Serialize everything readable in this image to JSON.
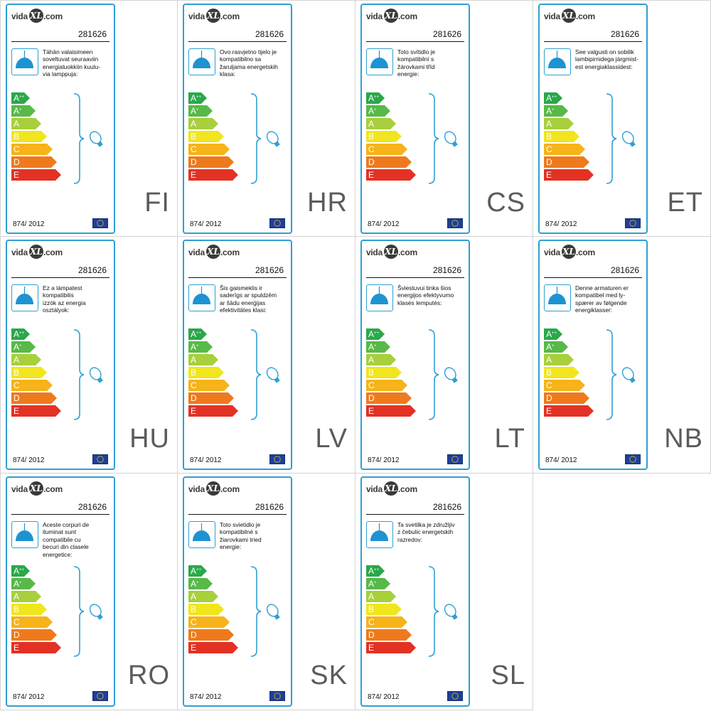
{
  "brand": {
    "left": "vida",
    "mark": "XL",
    "right": ".com"
  },
  "product_code": "281626",
  "regulation": "874/ 2012",
  "icons": {
    "lamp": "pendant-lamp-icon",
    "bulb": "bulb-icon",
    "flag": "eu-flag-icon"
  },
  "energy_classes": [
    {
      "base": "A",
      "sup": "++",
      "color": "#2aa84a"
    },
    {
      "base": "A",
      "sup": "+",
      "color": "#57b947"
    },
    {
      "base": "A",
      "sup": "",
      "color": "#a8cf3c"
    },
    {
      "base": "B",
      "sup": "",
      "color": "#f1e61e"
    },
    {
      "base": "C",
      "sup": "",
      "color": "#f6b31a"
    },
    {
      "base": "D",
      "sup": "",
      "color": "#ee7a1d"
    },
    {
      "base": "E",
      "sup": "",
      "color": "#e33124"
    }
  ],
  "colors": {
    "accent": "#2f9fd3",
    "lamp_fill": "#1e93d2"
  },
  "labels": [
    {
      "lang": "FI",
      "text": "Tähän valaisimeen\nsoveltuvat seuraaviin\nenergialuokkiin kuulu-\nvia lamppuja:"
    },
    {
      "lang": "HR",
      "text": "Ovo rasvjetno tijelo je\nkompatibilno sa\nžaruljama energetskih\nklasa:"
    },
    {
      "lang": "CS",
      "text": "Toto svítidlo je\nkompatibilní s\nžárovkami tříd\nenergie:"
    },
    {
      "lang": "ET",
      "text": "See valgusti on sobilik\nlambipirnidega järgmist-\nest energiaklassidest:"
    },
    {
      "lang": "HU",
      "text": "Ez a lámpatest\nkompatibilis\nizzók az energia\nosztályok:"
    },
    {
      "lang": "LV",
      "text": "Šis gaismeklis ir\nsaderīgs ar spuldzēm\nar šādu enerģijas\nefektivitātes klasi:"
    },
    {
      "lang": "LT",
      "text": "Šviestuvui tinka šios\nenergijos efektyvumo\nklasės lemputės:"
    },
    {
      "lang": "NB",
      "text": "Denne armaturen er\nkompatibel med ly-\nspærer av følgende\nenergiklasser:"
    },
    {
      "lang": "RO",
      "text": "Aceste corpuri de\niluminat sunt\ncompatibile cu\nbecuri din clasele\nenergetice:"
    },
    {
      "lang": "SK",
      "text": "Toto svietidlo je\nkompatibilné s\nžiarovkami tried\nenergie:"
    },
    {
      "lang": "SL",
      "text": "Ta svetilka je združljiv\nz čebulic energetskih\nrazredov:"
    }
  ]
}
